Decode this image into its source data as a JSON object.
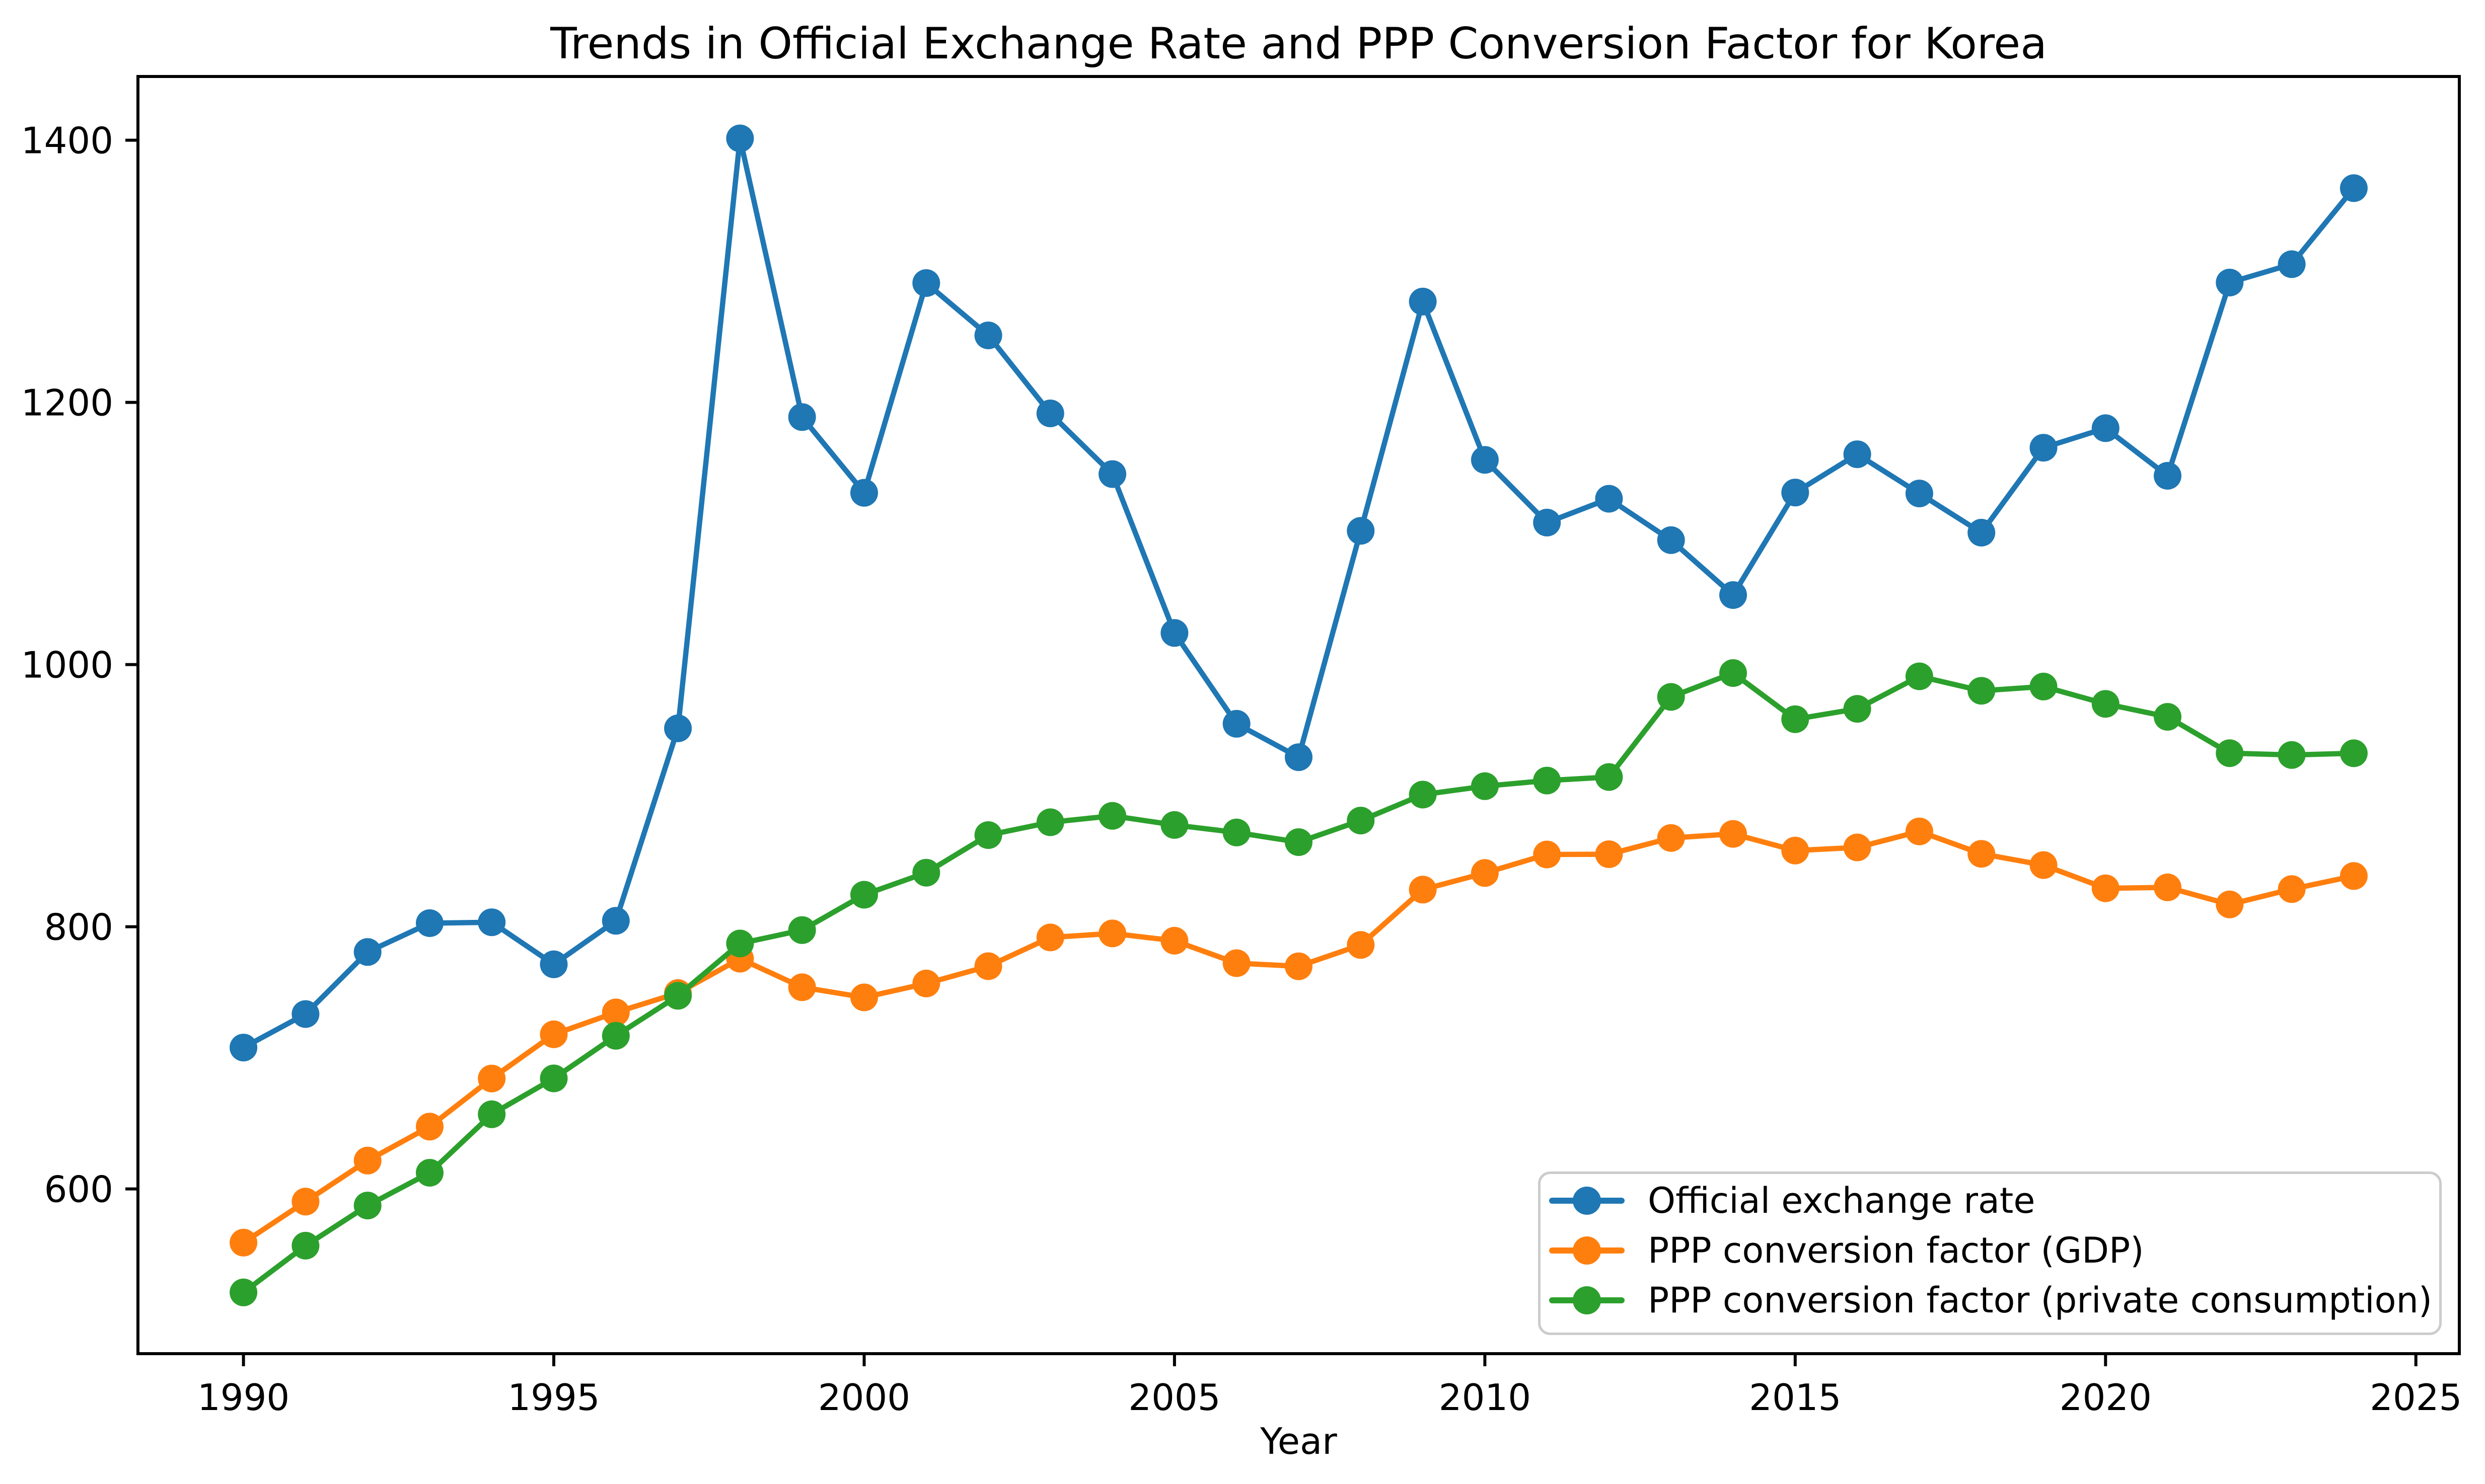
{
  "chart_data": {
    "type": "line",
    "title": "Trends in Official Exchange Rate and PPP Conversion Factor for Korea",
    "xlabel": "Year",
    "ylabel": "",
    "x": [
      1990,
      1991,
      1992,
      1993,
      1994,
      1995,
      1996,
      1997,
      1998,
      1999,
      2000,
      2001,
      2002,
      2003,
      2004,
      2005,
      2006,
      2007,
      2008,
      2009,
      2010,
      2011,
      2012,
      2013,
      2014,
      2015,
      2016,
      2017,
      2018,
      2019,
      2020,
      2021,
      2022,
      2023,
      2024
    ],
    "series": [
      {
        "name": "Official exchange rate",
        "color": "#1f77b4",
        "values": [
          707.8,
          733.4,
          780.7,
          802.7,
          803.4,
          771.3,
          804.5,
          951.3,
          1401.4,
          1188.8,
          1131.0,
          1291.0,
          1251.1,
          1191.6,
          1145.3,
          1024.1,
          954.8,
          929.3,
          1102.0,
          1276.9,
          1156.1,
          1108.3,
          1126.5,
          1094.9,
          1053.0,
          1131.2,
          1160.4,
          1130.5,
          1100.6,
          1165.4,
          1180.3,
          1144.0,
          1291.4,
          1305.4,
          1363.4
        ]
      },
      {
        "name": "PPP conversion factor (GDP)",
        "color": "#ff7f0e",
        "values": [
          559.0,
          590.3,
          621.6,
          647.5,
          684.2,
          717.9,
          734.6,
          749.4,
          775.6,
          753.8,
          746.1,
          756.7,
          769.9,
          791.8,
          794.9,
          789.3,
          772.2,
          769.8,
          786.1,
          828.3,
          841.0,
          855.1,
          855.3,
          867.7,
          870.8,
          858.1,
          860.5,
          872.7,
          855.6,
          847.0,
          829.3,
          830.0,
          817.0,
          828.7,
          838.7
        ]
      },
      {
        "name": "PPP conversion factor (private consumption)",
        "color": "#2ca02c",
        "values": [
          521.0,
          556.7,
          587.3,
          612.3,
          656.9,
          684.3,
          716.8,
          747.3,
          787.2,
          797.4,
          824.4,
          841.2,
          869.9,
          879.7,
          884.6,
          877.6,
          871.9,
          864.5,
          881.0,
          900.8,
          907.2,
          911.5,
          914.2,
          975.3,
          993.5,
          958.3,
          966.2,
          991.0,
          980.0,
          983.2,
          970.0,
          960.1,
          932.4,
          931.0,
          932.3
        ]
      }
    ],
    "xlim": [
      1988.3,
      2025.7
    ],
    "ylim": [
      474.3,
      1448.6
    ],
    "xticks": [
      1990,
      1995,
      2000,
      2005,
      2010,
      2015,
      2020,
      2025
    ],
    "yticks": [
      600,
      800,
      1000,
      1200,
      1400
    ],
    "grid": false,
    "legend_position": "lower right",
    "marker": "o"
  },
  "styles": {
    "axis_color": "#000000",
    "tick_label_color": "#000000",
    "legend_border_color": "#cccccc",
    "background_color": "#ffffff"
  }
}
